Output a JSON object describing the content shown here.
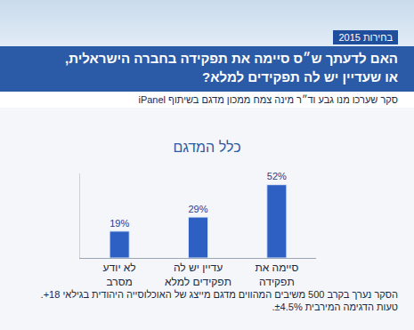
{
  "chart_data": {
    "type": "bar",
    "label": "בחירות 2015",
    "title": "האם לדעתך ש״ס סיימה את תפקידה בחברה הישראלית,\nאו שעדיין יש לה תפקידים למלא?",
    "subtitle": "סקר שערכו מנו גבע וד״ר מינה צמח ממכון מדגם בשיתוף iPanel",
    "panel_title": "כלל המדגם",
    "categories": [
      "לא יודע\nמסרב",
      "עדיין יש לה\nתפקידים למלא",
      "סיימה את\nתפקידה"
    ],
    "values": [
      19,
      29,
      52
    ],
    "value_labels": [
      "19%",
      "29%",
      "52%"
    ],
    "color": "#2e5fc2",
    "ylim": [
      0,
      60
    ],
    "grid": false,
    "data_labels": true,
    "tick_labels": "x",
    "footnotes": [
      "הסקר נערך בקרב 500 משיבים המהווים מדגם מייצג של האוכלוסייה היהודית בגילאי 18+.",
      "טעות הדגימה המירבית ±4.5%."
    ]
  }
}
